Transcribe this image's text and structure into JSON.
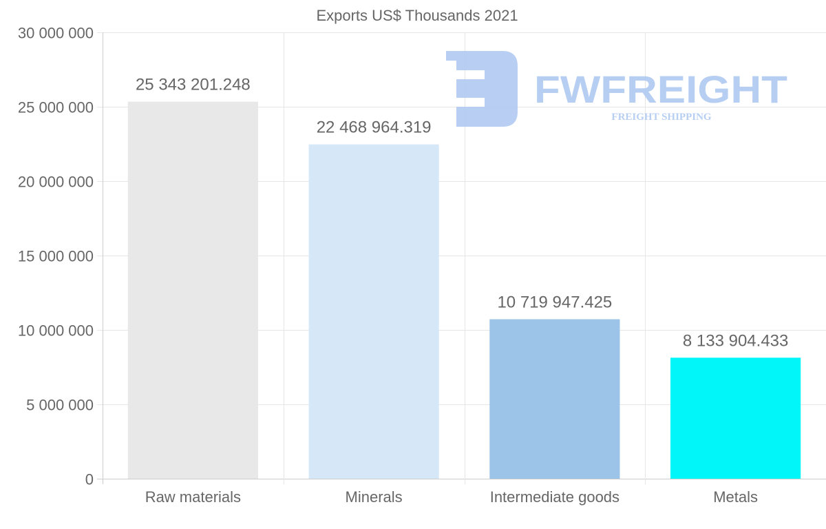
{
  "chart_data": {
    "type": "bar",
    "title": "Exports US$ Thousands 2021",
    "categories": [
      "Raw materials",
      "Minerals",
      "Intermediate goods",
      "Metals"
    ],
    "values": [
      25343201.248,
      22468964.319,
      10719947.425,
      8133904.433
    ],
    "data_labels": [
      "25 343 201.248",
      "22 468 964.319",
      "10 719 947.425",
      "8 133 904.433"
    ],
    "colors": [
      "#e8e8e8",
      "#d6e7f8",
      "#9bc4e8",
      "#00f6f8"
    ],
    "ylim": [
      0,
      30000000
    ],
    "yticks": [
      0,
      5000000,
      10000000,
      15000000,
      20000000,
      25000000,
      30000000
    ],
    "ytick_labels": [
      "0",
      "5 000 000",
      "10 000 000",
      "15 000 000",
      "20 000 000",
      "25 000 000",
      "30 000 000"
    ],
    "xlabel": "",
    "ylabel": "",
    "grid": true,
    "legend": "none"
  },
  "watermark": {
    "brand": "FWFREIGHT",
    "tagline": "FREIGHT SHIPPING",
    "color": "#a8c4f0"
  }
}
